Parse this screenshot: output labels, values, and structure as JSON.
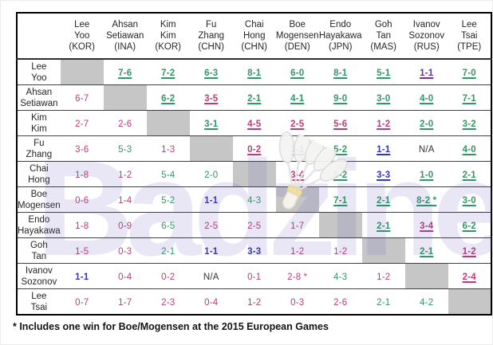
{
  "chart_data": {
    "type": "table",
    "column_headers": [
      {
        "first": "Lee",
        "last": "Yoo",
        "country": "(KOR)"
      },
      {
        "first": "Ahsan",
        "last": "Setiawan",
        "country": "(INA)"
      },
      {
        "first": "Kim",
        "last": "Kim",
        "country": "(KOR)"
      },
      {
        "first": "Fu",
        "last": "Zhang",
        "country": "(CHN)"
      },
      {
        "first": "Chai",
        "last": "Hong",
        "country": "(CHN)"
      },
      {
        "first": "Boe",
        "last": "Mogensen",
        "country": "(DEN)"
      },
      {
        "first": "Endo",
        "last": "Hayakawa",
        "country": "(JPN)"
      },
      {
        "first": "Goh",
        "last": "Tan",
        "country": "(MAS)"
      },
      {
        "first": "Ivanov",
        "last": "Sozonov",
        "country": "(RUS)"
      },
      {
        "first": "Lee",
        "last": "Tsai",
        "country": "(TPE)"
      }
    ],
    "row_headers": [
      {
        "first": "Lee",
        "last": "Yoo"
      },
      {
        "first": "Ahsan",
        "last": "Setiawan"
      },
      {
        "first": "Kim",
        "last": "Kim"
      },
      {
        "first": "Fu",
        "last": "Zhang"
      },
      {
        "first": "Chai",
        "last": "Hong"
      },
      {
        "first": "Boe",
        "last": "Mogensen"
      },
      {
        "first": "Endo",
        "last": "Hayakawa"
      },
      {
        "first": "Goh",
        "last": "Tan"
      },
      {
        "first": "Ivanov",
        "last": "Sozonov"
      },
      {
        "first": "Lee",
        "last": "Tsai"
      }
    ],
    "matrix": [
      [
        {
          "diag": true
        },
        {
          "v": "7-6",
          "c": "win",
          "u": true
        },
        {
          "v": "7-2",
          "c": "win",
          "u": true
        },
        {
          "v": "6-3",
          "c": "win",
          "u": true
        },
        {
          "v": "8-1",
          "c": "win",
          "u": true
        },
        {
          "v": "6-0",
          "c": "win",
          "u": true
        },
        {
          "v": "8-1",
          "c": "win",
          "u": true
        },
        {
          "v": "5-1",
          "c": "win",
          "u": true
        },
        {
          "v": "1-1",
          "c": "tie_purple",
          "u": true
        },
        {
          "v": "7-0",
          "c": "win",
          "u": true
        }
      ],
      [
        {
          "v": "6-7",
          "c": "loss"
        },
        {
          "diag": true
        },
        {
          "v": "6-2",
          "c": "win",
          "u": true
        },
        {
          "v": "3-5",
          "c": "loss",
          "u": true
        },
        {
          "v": "2-1",
          "c": "win",
          "u": true
        },
        {
          "v": "4-1",
          "c": "win",
          "u": true
        },
        {
          "v": "9-0",
          "c": "win",
          "u": true
        },
        {
          "v": "3-0",
          "c": "win",
          "u": true
        },
        {
          "v": "4-0",
          "c": "win",
          "u": true
        },
        {
          "v": "7-1",
          "c": "win",
          "u": true
        }
      ],
      [
        {
          "v": "2-7",
          "c": "loss"
        },
        {
          "v": "2-6",
          "c": "loss"
        },
        {
          "diag": true
        },
        {
          "v": "3-1",
          "c": "win",
          "u": true
        },
        {
          "v": "4-5",
          "c": "loss",
          "u": true
        },
        {
          "v": "2-5",
          "c": "loss",
          "u": true
        },
        {
          "v": "5-6",
          "c": "loss",
          "u": true
        },
        {
          "v": "1-2",
          "c": "loss",
          "u": true
        },
        {
          "v": "2-0",
          "c": "win",
          "u": true
        },
        {
          "v": "3-2",
          "c": "win",
          "u": true
        }
      ],
      [
        {
          "v": "3-6",
          "c": "loss"
        },
        {
          "v": "5-3",
          "c": "win"
        },
        {
          "v": "1-3",
          "c": "loss"
        },
        {
          "diag": true
        },
        {
          "v": "0-2",
          "c": "loss",
          "u": true
        },
        {
          "v": "1-1",
          "c": "tie",
          "u": true
        },
        {
          "v": "5-2",
          "c": "win",
          "u": true
        },
        {
          "v": "1-1",
          "c": "tie",
          "u": true
        },
        {
          "v": "N/A",
          "c": "na"
        },
        {
          "v": "4-0",
          "c": "win",
          "u": true
        }
      ],
      [
        {
          "v": "1-8",
          "c": "loss"
        },
        {
          "v": "1-2",
          "c": "loss"
        },
        {
          "v": "5-4",
          "c": "win"
        },
        {
          "v": "2-0",
          "c": "win"
        },
        {
          "diag": true
        },
        {
          "v": "3-4",
          "c": "loss",
          "u": true
        },
        {
          "v": "5-2",
          "c": "win",
          "u": true
        },
        {
          "v": "3-3",
          "c": "tie",
          "u": true
        },
        {
          "v": "1-0",
          "c": "win",
          "u": true
        },
        {
          "v": "2-1",
          "c": "win",
          "u": true
        }
      ],
      [
        {
          "v": "0-6",
          "c": "loss"
        },
        {
          "v": "1-4",
          "c": "loss"
        },
        {
          "v": "5-2",
          "c": "win"
        },
        {
          "v": "1-1",
          "c": "tie"
        },
        {
          "v": "4-3",
          "c": "win"
        },
        {
          "diag": true
        },
        {
          "v": "7-1",
          "c": "win",
          "u": true
        },
        {
          "v": "2-1",
          "c": "win",
          "u": true
        },
        {
          "v": "8-2 *",
          "c": "win",
          "u": true
        },
        {
          "v": "3-0",
          "c": "win",
          "u": true
        }
      ],
      [
        {
          "v": "1-8",
          "c": "loss"
        },
        {
          "v": "0-9",
          "c": "loss"
        },
        {
          "v": "6-5",
          "c": "win"
        },
        {
          "v": "2-5",
          "c": "loss"
        },
        {
          "v": "2-5",
          "c": "loss"
        },
        {
          "v": "1-7",
          "c": "loss"
        },
        {
          "diag": true
        },
        {
          "v": "2-1",
          "c": "win",
          "u": true
        },
        {
          "v": "3-4",
          "c": "loss",
          "u": true
        },
        {
          "v": "6-2",
          "c": "win",
          "u": true
        }
      ],
      [
        {
          "v": "1-5",
          "c": "loss"
        },
        {
          "v": "0-3",
          "c": "loss"
        },
        {
          "v": "2-1",
          "c": "win"
        },
        {
          "v": "1-1",
          "c": "tie"
        },
        {
          "v": "3-3",
          "c": "tie"
        },
        {
          "v": "1-2",
          "c": "loss"
        },
        {
          "v": "1-2",
          "c": "loss"
        },
        {
          "diag": true
        },
        {
          "v": "2-1",
          "c": "win",
          "u": true
        },
        {
          "v": "1-2",
          "c": "loss",
          "u": true
        }
      ],
      [
        {
          "v": "1-1",
          "c": "tie"
        },
        {
          "v": "0-4",
          "c": "loss"
        },
        {
          "v": "0-2",
          "c": "loss"
        },
        {
          "v": "N/A",
          "c": "na"
        },
        {
          "v": "0-1",
          "c": "loss"
        },
        {
          "v": "2-8 *",
          "c": "loss"
        },
        {
          "v": "4-3",
          "c": "win"
        },
        {
          "v": "1-2",
          "c": "loss"
        },
        {
          "diag": true
        },
        {
          "v": "2-4",
          "c": "loss",
          "u": true
        }
      ],
      [
        {
          "v": "0-7",
          "c": "loss"
        },
        {
          "v": "1-7",
          "c": "loss"
        },
        {
          "v": "2-3",
          "c": "loss"
        },
        {
          "v": "0-4",
          "c": "loss"
        },
        {
          "v": "1-2",
          "c": "loss"
        },
        {
          "v": "0-3",
          "c": "loss"
        },
        {
          "v": "2-6",
          "c": "loss"
        },
        {
          "v": "2-1",
          "c": "win"
        },
        {
          "v": "4-2",
          "c": "win"
        },
        {
          "diag": true
        }
      ]
    ]
  },
  "colors": {
    "win": "#2F9966",
    "loss": "#C03A78",
    "tie": "#3333CC",
    "tie_purple": "#7030A0",
    "na": "#333333",
    "diagonal": "#C6C6C6"
  },
  "footnote": "* Includes one win for Boe/Mogensen at the 2015 European Games",
  "watermark": {
    "text": "Badzine"
  }
}
